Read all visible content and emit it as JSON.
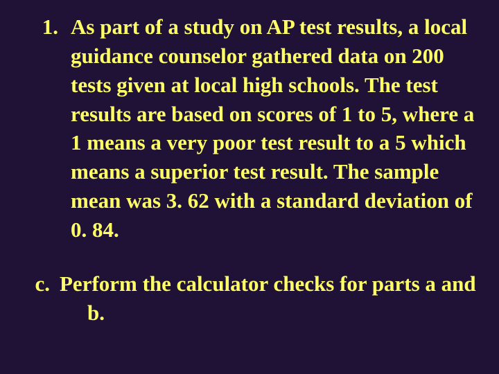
{
  "colors": {
    "background": "#1f1236",
    "text": "#ffff66"
  },
  "typography": {
    "font_family": "Times New Roman",
    "font_size_pt": 24,
    "font_weight": "bold",
    "line_height": 1.35
  },
  "items": [
    {
      "marker": "1.",
      "text": "As part of a study on AP test results, a local guidance counselor gathered data on 200 tests given at local high schools. The test results are based on scores of 1 to 5, where a 1 means a very poor test result to a 5 which means a superior test result.  The sample mean was 3. 62 with a standard deviation of 0. 84."
    },
    {
      "marker": "c.",
      "text": "Perform the calculator checks for parts a and b."
    }
  ]
}
